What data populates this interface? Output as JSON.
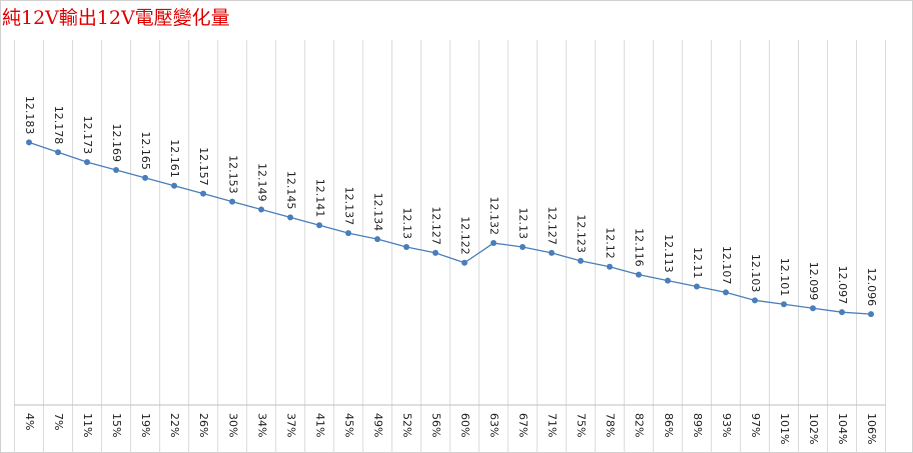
{
  "chart_data": {
    "type": "line",
    "title": "純12V輸出12V電壓變化量",
    "categories": [
      "4%",
      "7%",
      "11%",
      "15%",
      "19%",
      "22%",
      "26%",
      "30%",
      "34%",
      "37%",
      "41%",
      "45%",
      "49%",
      "52%",
      "56%",
      "60%",
      "63%",
      "67%",
      "71%",
      "75%",
      "78%",
      "82%",
      "86%",
      "89%",
      "93%",
      "97%",
      "101%",
      "102%",
      "104%",
      "106%"
    ],
    "values": [
      12.183,
      12.178,
      12.173,
      12.169,
      12.165,
      12.161,
      12.157,
      12.153,
      12.149,
      12.145,
      12.141,
      12.137,
      12.134,
      12.13,
      12.127,
      12.122,
      12.132,
      12.13,
      12.127,
      12.123,
      12.12,
      12.116,
      12.113,
      12.11,
      12.107,
      12.103,
      12.101,
      12.099,
      12.097,
      12.096
    ],
    "color": "#4a7ebb",
    "ylim": [
      12.05,
      12.25
    ],
    "grid": true
  }
}
